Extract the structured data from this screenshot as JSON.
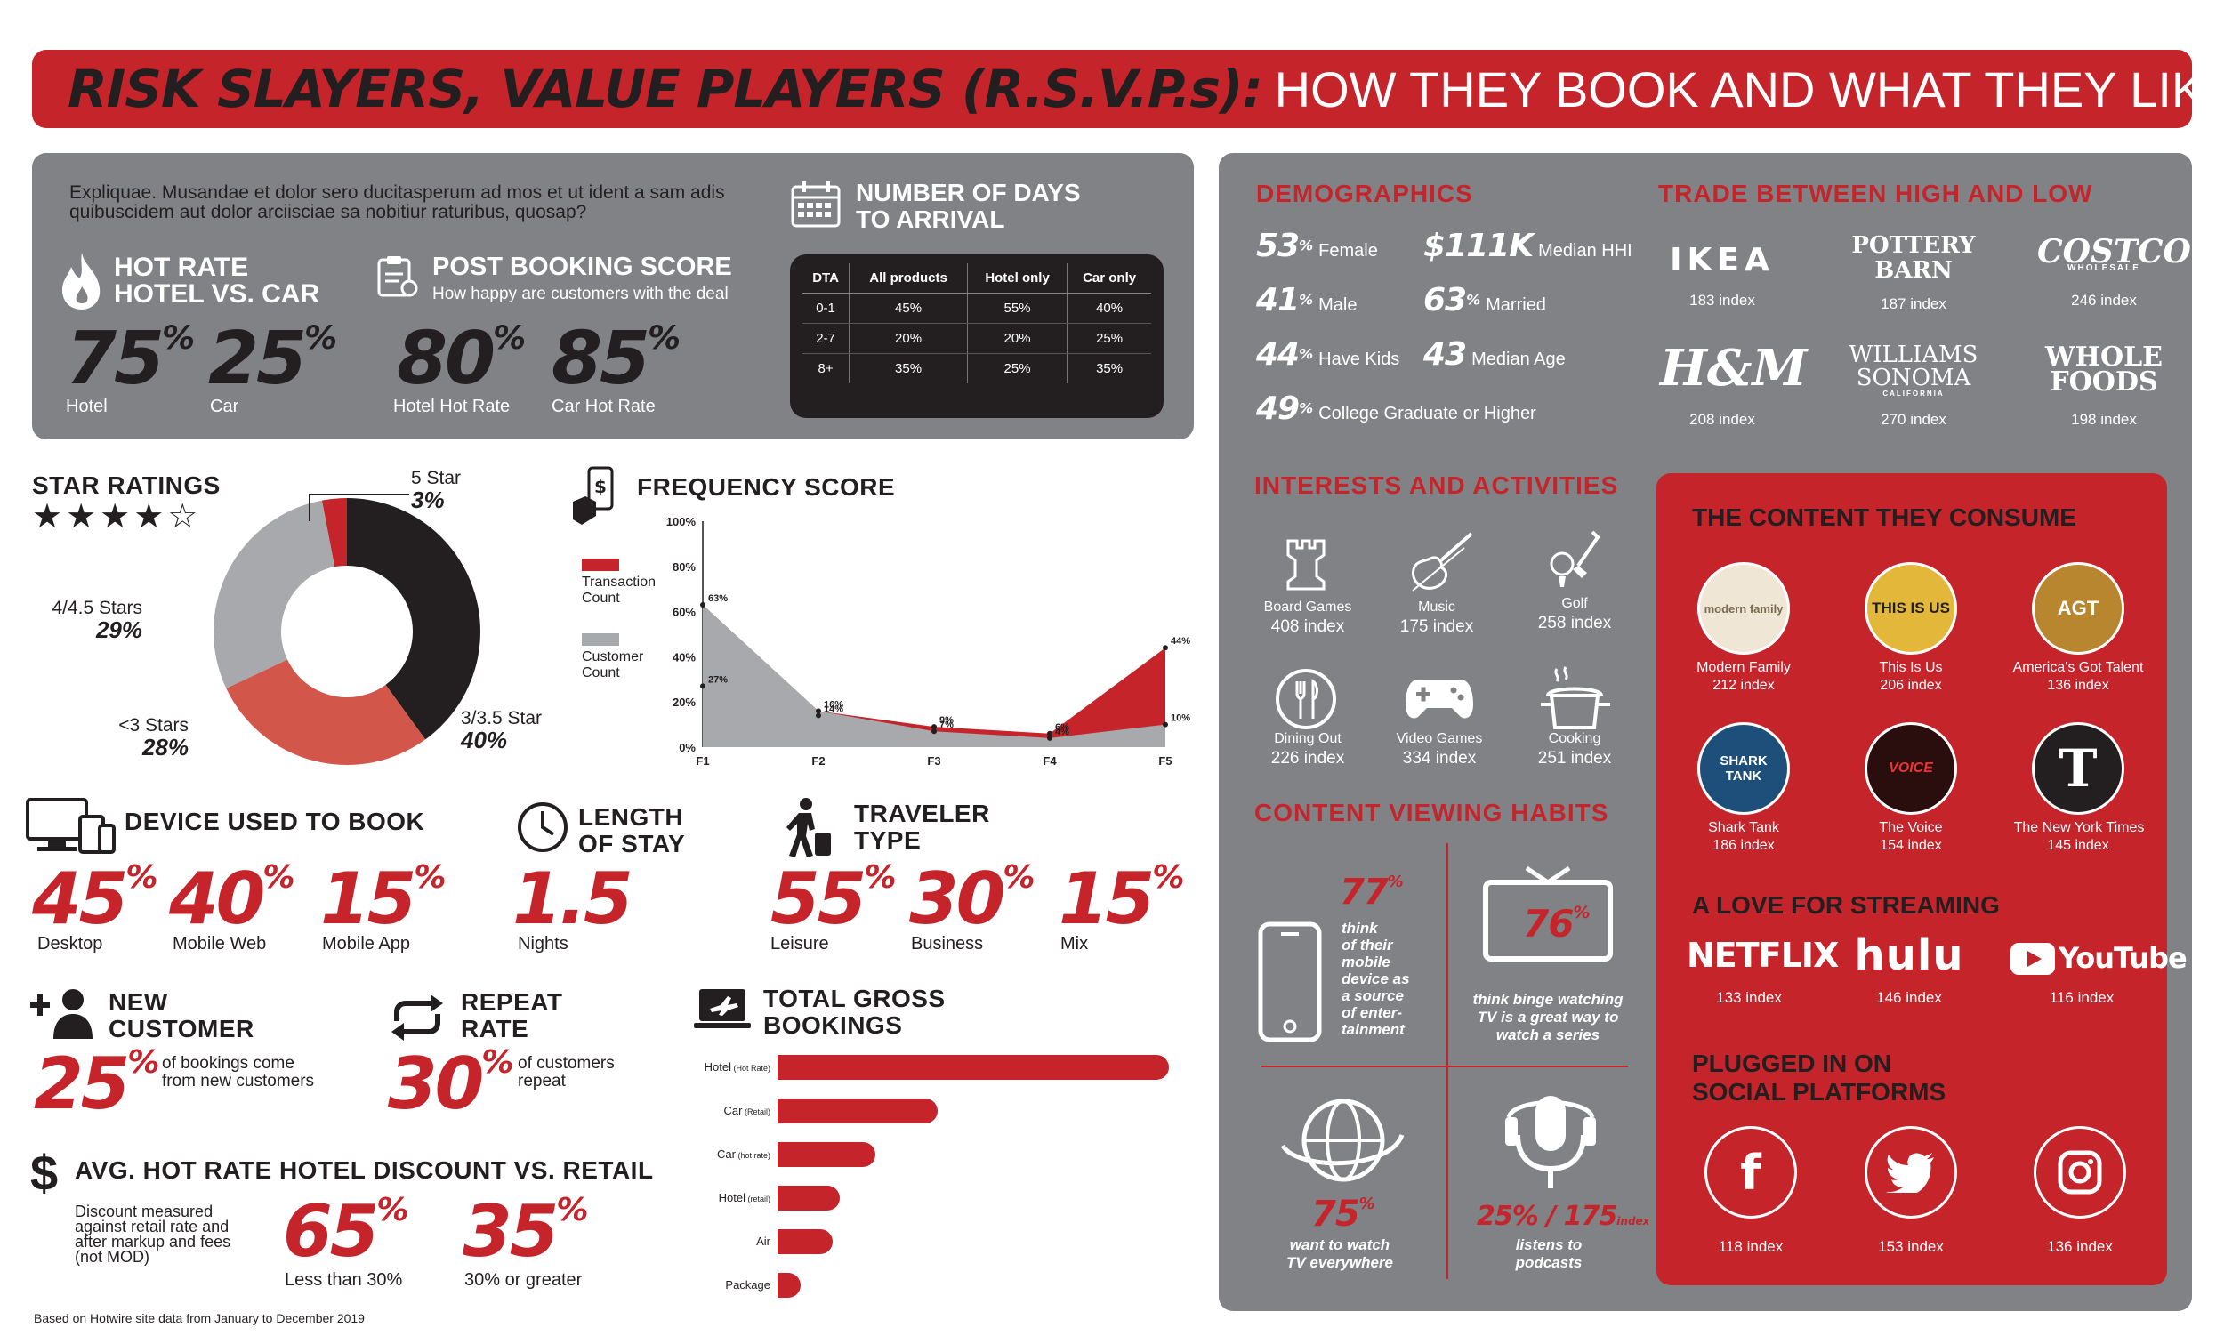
{
  "title": {
    "part1": "RISK SLAYERS, VALUE PLAYERS (R.S.V.P.s):",
    "part2": "HOW THEY BOOK AND WHAT THEY LIKE."
  },
  "intro": "Expliquae. Musandae et dolor sero ducitasperum ad mos et ut ident a sam adis quibuscidem aut dolor arciisciae sa nobitiur raturibus, quosap?",
  "hot_rate": {
    "title_line1": "HOT RATE",
    "title_line2": "HOTEL VS. CAR",
    "hotel_value": "75",
    "hotel_label": "Hotel",
    "car_value": "25",
    "car_label": "Car",
    "pct": "%"
  },
  "post_booking": {
    "title": "POST BOOKING SCORE",
    "subtitle": "How happy are customers with the deal",
    "hotel_value": "80",
    "hotel_label": "Hotel Hot Rate",
    "car_value": "85",
    "car_label": "Car Hot Rate"
  },
  "days_to_arrival": {
    "title_line1": "NUMBER OF DAYS",
    "title_line2": "TO ARRIVAL",
    "headers": [
      "DTA",
      "All products",
      "Hotel only",
      "Car only"
    ],
    "rows": [
      [
        "0-1",
        "45%",
        "55%",
        "40%"
      ],
      [
        "2-7",
        "20%",
        "20%",
        "25%"
      ],
      [
        "8+",
        "35%",
        "25%",
        "35%"
      ]
    ]
  },
  "star_ratings": {
    "title": "STAR RATINGS",
    "stars": "★★★★☆",
    "labels": [
      {
        "name": "5 Star",
        "value": "3%"
      },
      {
        "name": "4/4.5 Stars",
        "value": "29%"
      },
      {
        "name": "<3 Stars",
        "value": "28%"
      },
      {
        "name": "3/3.5 Star",
        "value": "40%"
      }
    ]
  },
  "frequency": {
    "title": "FREQUENCY SCORE",
    "legend1": "Transaction Count",
    "legend2": "Customer Count"
  },
  "chart_data": [
    {
      "type": "pie",
      "title": "STAR RATINGS",
      "categories": [
        "5 Star",
        "3/3.5 Star",
        "<3 Stars",
        "4/4.5 Stars"
      ],
      "values": [
        3,
        40,
        28,
        29
      ],
      "colors": [
        "#c5242b",
        "#231f20",
        "#d2564a",
        "#a7a9ac"
      ]
    },
    {
      "type": "area",
      "title": "FREQUENCY SCORE",
      "categories": [
        "F1",
        "F2",
        "F3",
        "F4",
        "F5"
      ],
      "ylim": [
        0,
        100
      ],
      "yticks": [
        "0%",
        "20%",
        "40%",
        "60%",
        "80%",
        "100%"
      ],
      "series": [
        {
          "name": "Transaction Count",
          "values": [
            27,
            14,
            9,
            6,
            44
          ],
          "labels": [
            "27%",
            "14%",
            "9%",
            "6%",
            "44%"
          ],
          "color": "#c5242b"
        },
        {
          "name": "Customer Count",
          "values": [
            63,
            16,
            7,
            4,
            10
          ],
          "labels": [
            "63%",
            "16%",
            "7%",
            "4%",
            "10%"
          ],
          "color": "#a7a9ac"
        }
      ]
    },
    {
      "type": "bar",
      "title": "TOTAL GROSS BOOKINGS",
      "categories": [
        "Hotel (Hot Rate)",
        "Car (Retail)",
        "Car (hot rate)",
        "Hotel (retail)",
        "Air",
        "Package"
      ],
      "values": [
        100,
        41,
        25,
        16,
        14,
        6
      ],
      "color": "#c5242b"
    }
  ],
  "device": {
    "title": "DEVICE USED TO BOOK",
    "items": [
      {
        "value": "45",
        "label": "Desktop"
      },
      {
        "value": "40",
        "label": "Mobile Web"
      },
      {
        "value": "15",
        "label": "Mobile App"
      }
    ]
  },
  "length_of_stay": {
    "title_line1": "LENGTH",
    "title_line2": "OF STAY",
    "value": "1.5",
    "label": "Nights"
  },
  "traveler": {
    "title_line1": "TRAVELER",
    "title_line2": "TYPE",
    "items": [
      {
        "value": "55",
        "label": "Leisure"
      },
      {
        "value": "30",
        "label": "Business"
      },
      {
        "value": "15",
        "label": "Mix"
      }
    ]
  },
  "new_customer": {
    "title_line1": "NEW",
    "title_line2": "CUSTOMER",
    "value": "25",
    "desc1": "of bookings come",
    "desc2": "from new customers"
  },
  "repeat": {
    "title_line1": "REPEAT",
    "title_line2": "RATE",
    "value": "30",
    "desc1": "of customers",
    "desc2": "repeat"
  },
  "gross": {
    "title_line1": "TOTAL GROSS",
    "title_line2": "BOOKINGS",
    "labels": [
      {
        "main": "Hotel",
        "sub": "(Hot Rate)"
      },
      {
        "main": "Car",
        "sub": "(Retail)"
      },
      {
        "main": "Car",
        "sub": "(hot rate)"
      },
      {
        "main": "Hotel",
        "sub": "(retail)"
      },
      {
        "main": "Air",
        "sub": ""
      },
      {
        "main": "Package",
        "sub": ""
      }
    ]
  },
  "discount": {
    "title": "AVG. HOT RATE HOTEL DISCOUNT VS. RETAIL",
    "desc": [
      "Discount measured",
      "against retail rate and",
      "after markup and fees",
      "(not MOD)"
    ],
    "items": [
      {
        "value": "65",
        "label": "Less than 30%"
      },
      {
        "value": "35",
        "label": "30% or greater"
      }
    ]
  },
  "footnote": "Based on Hotwire site data from January to December 2019",
  "demographics": {
    "title": "DEMOGRAPHICS",
    "left": [
      {
        "value": "53",
        "sup": "%",
        "label": "Female"
      },
      {
        "value": "41",
        "sup": "%",
        "label": "Male"
      },
      {
        "value": "44",
        "sup": "%",
        "label": "Have Kids"
      },
      {
        "value": "49",
        "sup": "%",
        "label": "College Graduate or Higher"
      }
    ],
    "right": [
      {
        "value": "$111K",
        "sup": "",
        "label": "Median HHI"
      },
      {
        "value": "63",
        "sup": "%",
        "label": "Married"
      },
      {
        "value": "43",
        "sup": "",
        "label": "Median Age"
      }
    ]
  },
  "trade": {
    "title": "TRADE BETWEEN HIGH AND LOW",
    "brands": [
      {
        "name": "IKEA",
        "index": "183 index"
      },
      {
        "name": "POTTERY BARN",
        "index": "187 index"
      },
      {
        "name": "COSTCO",
        "sub": "WHOLESALE",
        "index": "246 index"
      },
      {
        "name": "H&M",
        "index": "208 index"
      },
      {
        "name": "WILLIAMS SONOMA",
        "sub": "CALIFORNIA",
        "index": "270 index"
      },
      {
        "name": "WHOLE FOODS",
        "index": "198 index"
      }
    ]
  },
  "interests": {
    "title": "INTERESTS AND ACTIVITIES",
    "items": [
      {
        "label": "Board Games",
        "index": "408 index"
      },
      {
        "label": "Music",
        "index": "175 index"
      },
      {
        "label": "Golf",
        "index": "258 index"
      },
      {
        "label": "Dining Out",
        "index": "226 index"
      },
      {
        "label": "Video Games",
        "index": "334 index"
      },
      {
        "label": "Cooking",
        "index": "251 index"
      }
    ]
  },
  "viewing": {
    "title": "CONTENT VIEWING HABITS",
    "mobile_value": "77",
    "mobile_desc": [
      "think",
      "of their",
      "mobile",
      "device as",
      "a source",
      "of enter-",
      "tainment"
    ],
    "tv_value": "76",
    "tv_desc": [
      "think binge watching",
      "TV is a great way to",
      "watch a series"
    ],
    "globe_value": "75",
    "globe_desc": [
      "want to watch",
      "TV everywhere"
    ],
    "podcast_value": "25% / 175",
    "podcast_sub": "index",
    "podcast_desc": [
      "listens to",
      "podcasts"
    ]
  },
  "content": {
    "title": "THE CONTENT THEY CONSUME",
    "shows": [
      {
        "name": "Modern Family",
        "index": "212 index",
        "badge": "modern family"
      },
      {
        "name": "This Is Us",
        "index": "206 index",
        "badge": "THIS IS US"
      },
      {
        "name": "America's Got Talent",
        "index": "136 index",
        "badge": "AGT"
      },
      {
        "name": "Shark Tank",
        "index": "186 index",
        "badge": "SHARK TANK"
      },
      {
        "name": "The Voice",
        "index": "154 index",
        "badge": "VOICE"
      },
      {
        "name": "The New York Times",
        "index": "145 index",
        "badge": "T"
      }
    ],
    "streaming_title": "A LOVE FOR STREAMING",
    "streaming": [
      {
        "name": "NETFLIX",
        "index": "133 index"
      },
      {
        "name": "hulu",
        "index": "146 index"
      },
      {
        "name": "YouTube",
        "index": "116 index"
      }
    ],
    "social_title_line1": "PLUGGED IN ON",
    "social_title_line2": "SOCIAL PLATFORMS",
    "social": [
      {
        "name": "f",
        "index": "118 index"
      },
      {
        "name": "twitter",
        "index": "153 index"
      },
      {
        "name": "instagram",
        "index": "136 index"
      }
    ]
  }
}
